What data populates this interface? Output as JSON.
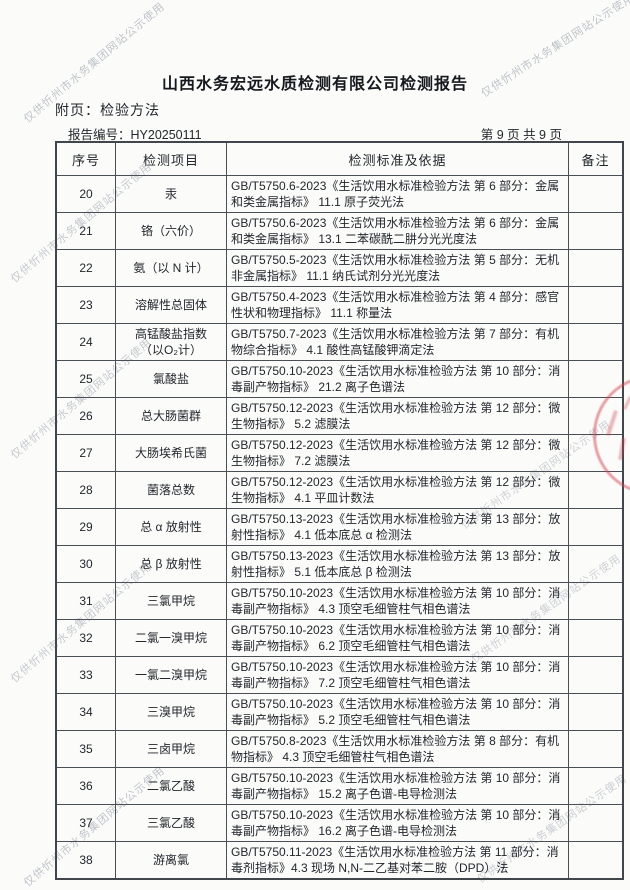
{
  "page": {
    "title": "山西水务宏远水质检测有限公司检测报告",
    "attachment_label": "附页：检验方法",
    "report_no_line": "报告编号：HY20250111",
    "page_indicator": "第 9 页 共 9 页"
  },
  "watermark": {
    "text": "仅供忻州市水务集团网站公示使用",
    "color": "#8f96a0"
  },
  "stamp": {
    "shape": "red-circular-seal-partial",
    "color": "#d84652"
  },
  "table": {
    "headers": [
      "序号",
      "检测项目",
      "检测标准及依据",
      "备注"
    ],
    "rows": [
      {
        "no": "20",
        "item": "汞",
        "standard": "GB/T5750.6-2023《生活饮用水标准检验方法 第 6 部分：金属和类金属指标》 11.1 原子荧光法",
        "remark": ""
      },
      {
        "no": "21",
        "item": "铬（六价）",
        "standard": "GB/T5750.6-2023《生活饮用水标准检验方法 第 6 部分：金属和类金属指标》 13.1 二苯碳酰二肼分光光度法",
        "remark": ""
      },
      {
        "no": "22",
        "item": "氨（以 N 计）",
        "standard": "GB/T5750.5-2023《生活饮用水标准检验方法 第 5 部分：无机非金属指标》 11.1 纳氏试剂分光光度法",
        "remark": ""
      },
      {
        "no": "23",
        "item": "溶解性总固体",
        "standard": "GB/T5750.4-2023《生活饮用水标准检验方法 第 4 部分：感官性状和物理指标》 11.1 称量法",
        "remark": ""
      },
      {
        "no": "24",
        "item": "高锰酸盐指数\n（以O₂计）",
        "standard": "GB/T5750.7-2023《生活饮用水标准检验方法 第 7 部分：有机物综合指标》 4.1 酸性高锰酸钾滴定法",
        "remark": ""
      },
      {
        "no": "25",
        "item": "氯酸盐",
        "standard": "GB/T5750.10-2023《生活饮用水标准检验方法 第 10 部分：消毒副产物指标》 21.2 离子色谱法",
        "remark": ""
      },
      {
        "no": "26",
        "item": "总大肠菌群",
        "standard": "GB/T5750.12-2023《生活饮用水标准检验方法 第 12 部分：微生物指标》 5.2 滤膜法",
        "remark": ""
      },
      {
        "no": "27",
        "item": "大肠埃希氏菌",
        "standard": "GB/T5750.12-2023《生活饮用水标准检验方法 第 12 部分：微生物指标》 7.2 滤膜法",
        "remark": ""
      },
      {
        "no": "28",
        "item": "菌落总数",
        "standard": "GB/T5750.12-2023《生活饮用水标准检验方法 第 12 部分：微生物指标》 4.1 平皿计数法",
        "remark": ""
      },
      {
        "no": "29",
        "item": "总 α 放射性",
        "standard": "GB/T5750.13-2023《生活饮用水标准检验方法 第 13 部分：放射性指标》 4.1 低本底总 α 检测法",
        "remark": ""
      },
      {
        "no": "30",
        "item": "总 β 放射性",
        "standard": "GB/T5750.13-2023《生活饮用水标准检验方法 第 13 部分：放射性指标》 5.1 低本底总 β 检测法",
        "remark": ""
      },
      {
        "no": "31",
        "item": "三氯甲烷",
        "standard": "GB/T5750.10-2023《生活饮用水标准检验方法 第 10 部分：消毒副产物指标》 4.3 顶空毛细管柱气相色谱法",
        "remark": ""
      },
      {
        "no": "32",
        "item": "二氯一溴甲烷",
        "standard": "GB/T5750.10-2023《生活饮用水标准检验方法 第 10 部分：消毒副产物指标》 6.2 顶空毛细管柱气相色谱法",
        "remark": ""
      },
      {
        "no": "33",
        "item": "一氯二溴甲烷",
        "standard": "GB/T5750.10-2023《生活饮用水标准检验方法 第 10 部分：消毒副产物指标》 7.2 顶空毛细管柱气相色谱法",
        "remark": ""
      },
      {
        "no": "34",
        "item": "三溴甲烷",
        "standard": "GB/T5750.10-2023《生活饮用水标准检验方法 第 10 部分：消毒副产物指标》 5.2 顶空毛细管柱气相色谱法",
        "remark": ""
      },
      {
        "no": "35",
        "item": "三卤甲烷",
        "standard": "GB/T5750.8-2023《生活饮用水标准检验方法 第 8 部分：有机物指标》 4.3 顶空毛细管柱气相色谱法",
        "remark": ""
      },
      {
        "no": "36",
        "item": "二氯乙酸",
        "standard": "GB/T5750.10-2023《生活饮用水标准检验方法 第 10 部分：消毒副产物指标》 15.2 离子色谱-电导检测法",
        "remark": ""
      },
      {
        "no": "37",
        "item": "三氯乙酸",
        "standard": "GB/T5750.10-2023《生活饮用水标准检验方法 第 10 部分：消毒副产物指标》 16.2 离子色谱-电导检测法",
        "remark": ""
      },
      {
        "no": "38",
        "item": "游离氯",
        "standard": "GB/T5750.11-2023《生活饮用水标准检验方法 第 11 部分：消毒剂指标》4.3 现场 N,N-二乙基对苯二胺（DPD）法",
        "remark": ""
      }
    ]
  }
}
